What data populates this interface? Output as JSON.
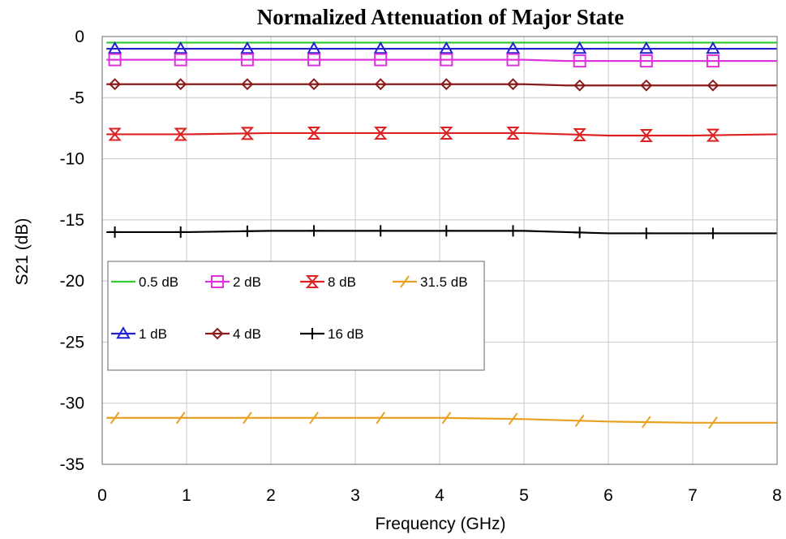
{
  "chart_data": {
    "type": "line",
    "title": "Normalized Attenuation of Major State",
    "xlabel": "Frequency (GHz)",
    "ylabel": "S21 (dB)",
    "xlim": [
      0,
      8
    ],
    "ylim": [
      -35,
      0
    ],
    "xticks": [
      0,
      1,
      2,
      3,
      4,
      5,
      6,
      7,
      8
    ],
    "yticks": [
      0,
      -5,
      -10,
      -15,
      -20,
      -25,
      -30,
      -35
    ],
    "grid": true,
    "legend_position": "middle-left",
    "marker_x": [
      0.15,
      0.93,
      1.72,
      2.51,
      3.3,
      4.08,
      4.87,
      5.66,
      6.45,
      7.24
    ],
    "series": [
      {
        "name": "0.5 dB",
        "color": "#33cc33",
        "marker": "none",
        "x": [
          0.05,
          1,
          2,
          3,
          4,
          5,
          6,
          7,
          8
        ],
        "y": [
          -0.5,
          -0.5,
          -0.5,
          -0.5,
          -0.5,
          -0.5,
          -0.5,
          -0.5,
          -0.5
        ]
      },
      {
        "name": "1 dB",
        "color": "#2222cc",
        "marker": "triangle",
        "x": [
          0.05,
          1,
          2,
          3,
          4,
          5,
          6,
          7,
          8
        ],
        "y": [
          -1.0,
          -1.0,
          -1.0,
          -1.0,
          -1.0,
          -1.0,
          -1.0,
          -1.0,
          -1.0
        ]
      },
      {
        "name": "2 dB",
        "color": "#dd33dd",
        "marker": "square",
        "x": [
          0.05,
          1,
          2,
          3,
          4,
          5,
          5.5,
          6,
          7,
          8
        ],
        "y": [
          -1.9,
          -1.9,
          -1.9,
          -1.9,
          -1.9,
          -1.9,
          -2.0,
          -2.0,
          -2.0,
          -2.0
        ]
      },
      {
        "name": "4 dB",
        "color": "#8b1a1a",
        "marker": "diamond",
        "x": [
          0.05,
          1,
          2,
          3,
          4,
          5,
          5.5,
          6,
          7,
          8
        ],
        "y": [
          -3.9,
          -3.9,
          -3.9,
          -3.9,
          -3.9,
          -3.9,
          -4.0,
          -4.0,
          -4.0,
          -4.0
        ]
      },
      {
        "name": "8 dB",
        "color": "#dd2222",
        "marker": "hourglass",
        "x": [
          0.05,
          1,
          2,
          3,
          4,
          5,
          5.5,
          6,
          7,
          8
        ],
        "y": [
          -8.0,
          -8.0,
          -7.9,
          -7.9,
          -7.9,
          -7.9,
          -8.0,
          -8.1,
          -8.1,
          -8.0
        ]
      },
      {
        "name": "16 dB",
        "color": "#000000",
        "marker": "plus",
        "x": [
          0.05,
          1,
          2,
          3,
          4,
          5,
          5.5,
          6,
          7,
          8
        ],
        "y": [
          -16.0,
          -16.0,
          -15.9,
          -15.9,
          -15.9,
          -15.9,
          -16.0,
          -16.1,
          -16.1,
          -16.1
        ]
      },
      {
        "name": "31.5 dB",
        "color": "#e8a020",
        "marker": "slash",
        "x": [
          0.05,
          1,
          2,
          3,
          4,
          5,
          5.5,
          6,
          7,
          8
        ],
        "y": [
          -31.2,
          -31.2,
          -31.2,
          -31.2,
          -31.2,
          -31.3,
          -31.4,
          -31.5,
          -31.6,
          -31.6
        ]
      }
    ],
    "legend_rows": [
      [
        "0.5 dB",
        "2 dB",
        "8 dB",
        "31.5 dB"
      ],
      [
        "1 dB",
        "4 dB",
        "16 dB"
      ]
    ]
  }
}
